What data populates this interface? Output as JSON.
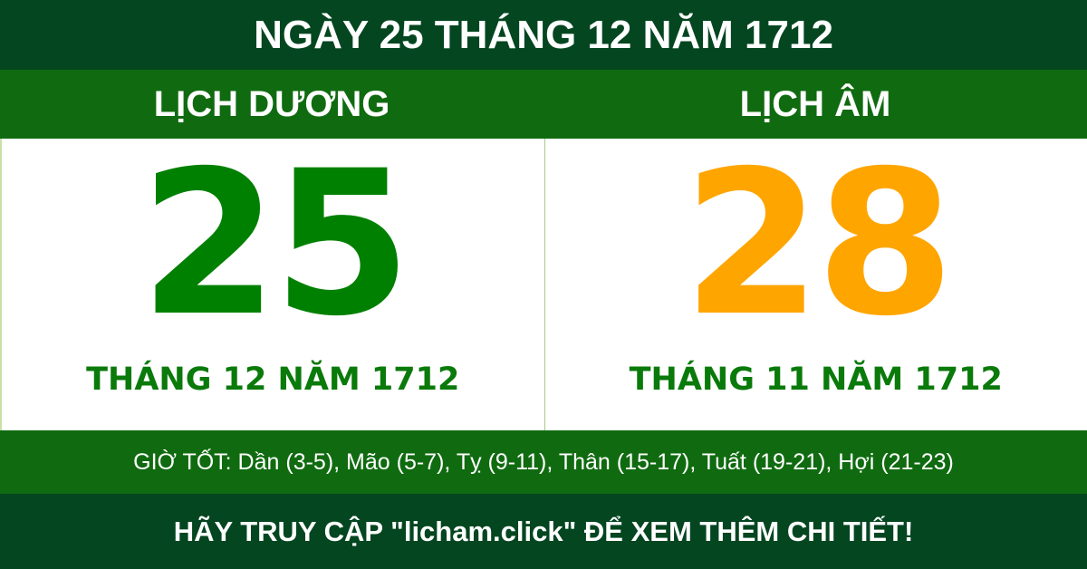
{
  "title": "NGÀY 25 THÁNG 12 NĂM 1712",
  "solar": {
    "label": "LỊCH DƯƠNG",
    "day": "25",
    "month_year": "THÁNG 12 NĂM 1712",
    "color": "#008000"
  },
  "lunar": {
    "label": "LỊCH ÂM",
    "day": "28",
    "month_year": "THÁNG 11 NĂM 1712",
    "color": "#ffa500"
  },
  "good_hours": "GIỜ TỐT: Dần (3-5), Mão (5-7), Tỵ (9-11), Thân (15-17), Tuất (19-21), Hợi (21-23)",
  "footer": "HÃY TRUY CẬP \"licham.click\" ĐỂ XEM THÊM CHI TIẾT!"
}
